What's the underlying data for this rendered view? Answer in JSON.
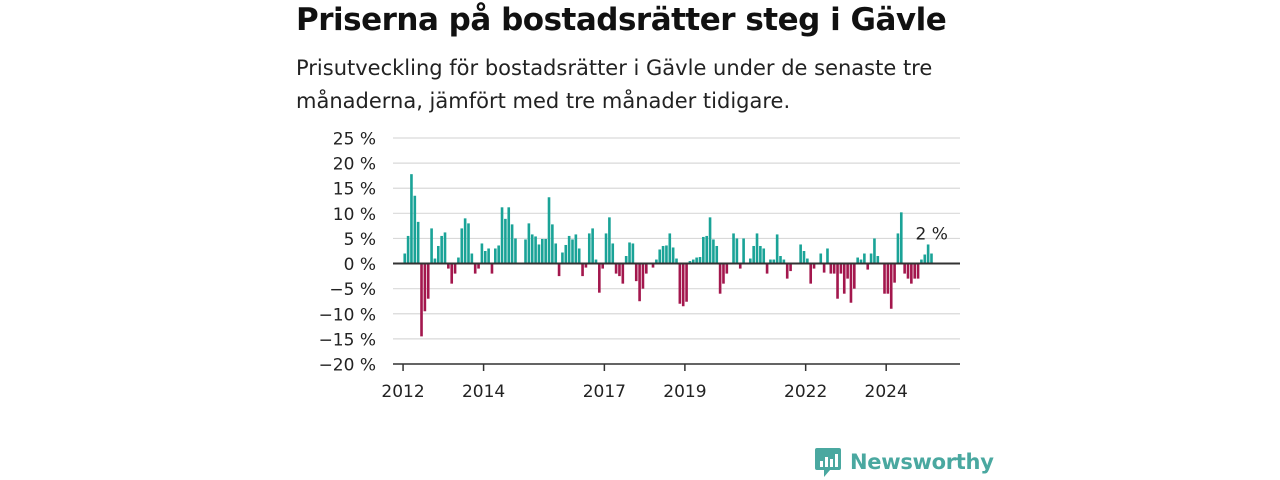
{
  "title": "Priserna på bostadsrätter steg i Gävle",
  "subtitle": "Prisutveckling för bostadsrätter i Gävle under de senaste tre månaderna, jämfört med tre månader tidigare.",
  "logo": {
    "text": "Newsworthy",
    "icon": "newsworthy-logo-icon"
  },
  "colors": {
    "positive": "#1aa397",
    "negative": "#a3174d",
    "grid": "#d9d9d9",
    "axis": "#333333",
    "logo": "#4aa8a0"
  },
  "chart_data": {
    "type": "bar",
    "unit": "%",
    "ylim": [
      -20,
      25
    ],
    "yticks": [
      -20,
      -15,
      -10,
      -5,
      0,
      5,
      10,
      15,
      20,
      25
    ],
    "ytick_labels": [
      "−20 %",
      "−15 %",
      "−10 %",
      "−5 %",
      "0 %",
      "5 %",
      "10 %",
      "15 %",
      "20 %",
      "25 %"
    ],
    "x_start": "2012-01",
    "xlim": [
      "2011-10",
      "2025-11"
    ],
    "xticks": [
      {
        "date": "2012-01",
        "label": "2012"
      },
      {
        "date": "2014-01",
        "label": "2014"
      },
      {
        "date": "2017-01",
        "label": "2017"
      },
      {
        "date": "2019-01",
        "label": "2019"
      },
      {
        "date": "2022-01",
        "label": "2022"
      },
      {
        "date": "2024-01",
        "label": "2024"
      }
    ],
    "values": [
      2,
      5.5,
      17.8,
      13.5,
      8.3,
      -14.5,
      -9.5,
      -7,
      7,
      1,
      3.5,
      5.5,
      6.2,
      -1,
      -4,
      -2,
      1.2,
      7,
      9,
      8,
      2,
      -2,
      -1,
      4,
      2.5,
      3,
      -2,
      3,
      3.6,
      11.2,
      8.9,
      11.2,
      7.8,
      5,
      0,
      0,
      4.8,
      8,
      5.8,
      5.4,
      3.8,
      4.9,
      4.9,
      13.2,
      7.8,
      4,
      -2.5,
      2.2,
      3.7,
      5.5,
      4.8,
      5.8,
      3,
      -2.5,
      -0.8,
      6,
      7,
      0.8,
      -5.8,
      -1,
      6,
      9.2,
      4,
      -2,
      -2.5,
      -4,
      1.5,
      4.2,
      4,
      -3.5,
      -7.5,
      -5,
      -2,
      0,
      -0.8,
      0.8,
      2.8,
      3.5,
      3.6,
      6,
      3.2,
      1,
      -8,
      -8.5,
      -7.6,
      0.5,
      0.8,
      1.2,
      1.3,
      5.3,
      5.5,
      9.2,
      4.8,
      3.5,
      -6,
      -4,
      -2,
      0,
      6,
      5,
      -1,
      5,
      0,
      1,
      3.5,
      6,
      3.5,
      3,
      -2,
      0.8,
      0.8,
      5.8,
      1.5,
      0.8,
      -3,
      -1.5,
      0,
      0,
      3.8,
      2.5,
      1,
      -4,
      -1,
      0,
      2,
      -1.8,
      3,
      -2,
      -2,
      -7,
      -2,
      -6,
      -3,
      -7.8,
      -5,
      1.2,
      0.8,
      2,
      -1.2,
      2,
      5,
      1.5,
      0,
      -6,
      -6,
      -9,
      -3.8,
      6,
      10.2,
      -2,
      -3,
      -4,
      -3,
      -3,
      0.8,
      1.8,
      3.8,
      2
    ],
    "annotation": {
      "text": "2 %",
      "value": 2
    },
    "title": "",
    "xlabel": "",
    "ylabel": ""
  }
}
